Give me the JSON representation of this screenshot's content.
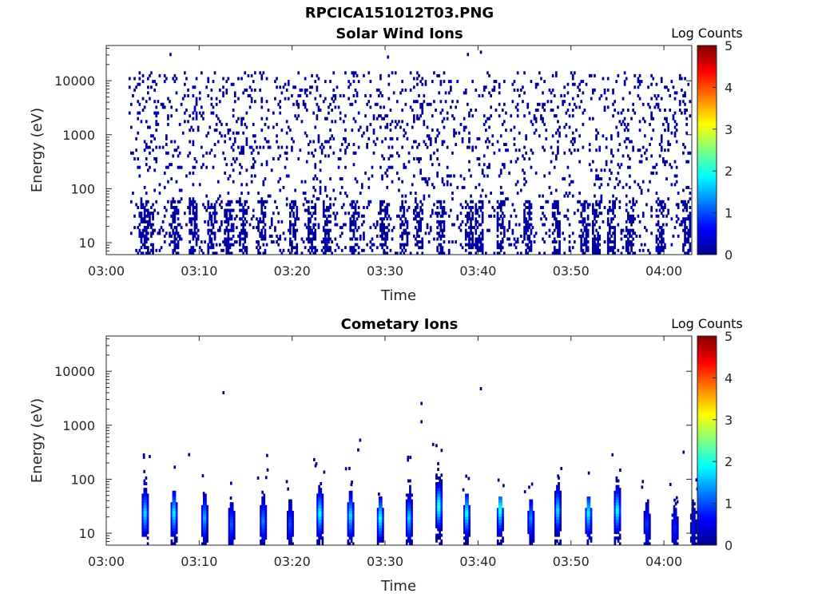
{
  "figure": {
    "title": "RPCICA151012T03.PNG"
  },
  "chart_data": [
    {
      "type": "heatmap",
      "title": "Solar Wind Ions",
      "xlabel": "Time",
      "ylabel": "Energy (eV)",
      "x_ticks": [
        "03:00",
        "03:10",
        "03:20",
        "03:30",
        "03:40",
        "03:50",
        "04:00"
      ],
      "x_range": [
        "03:00",
        "04:03"
      ],
      "y_ticks": [
        "10",
        "100",
        "1000",
        "10000"
      ],
      "y_scale": "log",
      "y_range": [
        6,
        45000
      ],
      "colorbar": {
        "label": "Log Counts",
        "ticks": [
          "0",
          "1",
          "2",
          "3",
          "4",
          "5"
        ],
        "range": [
          0,
          5
        ],
        "colormap": "jet"
      },
      "description_of_data": "Sparse single-count (~0) detections scattered across 20 eV to 20 keV; denser vertical clusters below 60 eV, approx. every 3 minutes from 03:03 to 04:03",
      "cluster_times_min": [
        3.8,
        4.6,
        7.2,
        9.3,
        11.2,
        13.0,
        14.6,
        16.7,
        20.1,
        22.0,
        23.6,
        26.5,
        29.8,
        32.0,
        33.5,
        35.8,
        38.9,
        40.0,
        42.3,
        45.3,
        48.3,
        51.3,
        52.7,
        54.2,
        56.2,
        59.4,
        62.3
      ],
      "outlier_points": [
        {
          "t_min": 6.8,
          "energy_ev": 29000
        },
        {
          "t_min": 30.2,
          "energy_ev": 26000
        },
        {
          "t_min": 38.8,
          "energy_ev": 29000
        },
        {
          "t_min": 40.2,
          "energy_ev": 32000
        }
      ]
    },
    {
      "type": "heatmap",
      "title": "Cometary Ions",
      "xlabel": "Time",
      "ylabel": "Energy (eV)",
      "x_ticks": [
        "03:00",
        "03:10",
        "03:20",
        "03:30",
        "03:40",
        "03:50",
        "04:00"
      ],
      "x_range": [
        "03:00",
        "04:03"
      ],
      "y_ticks": [
        "10",
        "100",
        "1000",
        "10000"
      ],
      "y_scale": "log",
      "y_range": [
        6,
        45000
      ],
      "colorbar": {
        "label": "Log Counts",
        "ticks": [
          "0",
          "1",
          "2",
          "3",
          "4",
          "5"
        ],
        "range": [
          0,
          5
        ],
        "colormap": "jet"
      },
      "bursts": [
        {
          "t_min": 4.0,
          "top_ev": 100,
          "peak_ev": 22,
          "peak_log": 1.8
        },
        {
          "t_min": 7.1,
          "top_ev": 60,
          "peak_ev": 22,
          "peak_log": 1.9
        },
        {
          "t_min": 10.4,
          "top_ev": 50,
          "peak_ev": 18,
          "peak_log": 1.5
        },
        {
          "t_min": 13.3,
          "top_ev": 45,
          "peak_ev": 14,
          "peak_log": 1.1
        },
        {
          "t_min": 16.7,
          "top_ev": 55,
          "peak_ev": 16,
          "peak_log": 1.3
        },
        {
          "t_min": 19.6,
          "top_ev": 40,
          "peak_ev": 14,
          "peak_log": 1.0
        },
        {
          "t_min": 22.8,
          "top_ev": 80,
          "peak_ev": 22,
          "peak_log": 2.0
        },
        {
          "t_min": 26.1,
          "top_ev": 60,
          "peak_ev": 20,
          "peak_log": 1.8
        },
        {
          "t_min": 29.3,
          "top_ev": 45,
          "peak_ev": 18,
          "peak_log": 2.0
        },
        {
          "t_min": 32.4,
          "top_ev": 90,
          "peak_ev": 18,
          "peak_log": 1.7
        },
        {
          "t_min": 35.6,
          "top_ev": 200,
          "peak_ev": 30,
          "peak_log": 2.2
        },
        {
          "t_min": 38.6,
          "top_ev": 50,
          "peak_ev": 22,
          "peak_log": 2.0
        },
        {
          "t_min": 42.2,
          "top_ev": 45,
          "peak_ev": 25,
          "peak_log": 2.1
        },
        {
          "t_min": 45.5,
          "top_ev": 40,
          "peak_ev": 18,
          "peak_log": 1.3
        },
        {
          "t_min": 48.4,
          "top_ev": 100,
          "peak_ev": 25,
          "peak_log": 1.8
        },
        {
          "t_min": 51.7,
          "top_ev": 45,
          "peak_ev": 22,
          "peak_log": 1.9
        },
        {
          "t_min": 54.8,
          "top_ev": 110,
          "peak_ev": 25,
          "peak_log": 2.0
        },
        {
          "t_min": 58.0,
          "top_ev": 40,
          "peak_ev": 14,
          "peak_log": 0.9
        },
        {
          "t_min": 61.0,
          "top_ev": 35,
          "peak_ev": 12,
          "peak_log": 0.8
        },
        {
          "t_min": 63.0,
          "top_ev": 40,
          "peak_ev": 12,
          "peak_log": 0.7
        }
      ],
      "outlier_points": [
        {
          "t_min": 12.5,
          "energy_ev": 3800
        },
        {
          "t_min": 27.2,
          "energy_ev": 500
        },
        {
          "t_min": 27.0,
          "energy_ev": 330
        },
        {
          "t_min": 33.8,
          "energy_ev": 2400
        },
        {
          "t_min": 33.8,
          "energy_ev": 1100
        },
        {
          "t_min": 40.2,
          "energy_ev": 4500
        },
        {
          "t_min": 8.8,
          "energy_ev": 270
        },
        {
          "t_min": 17.2,
          "energy_ev": 260
        },
        {
          "t_min": 62.0,
          "energy_ev": 300
        }
      ]
    }
  ]
}
